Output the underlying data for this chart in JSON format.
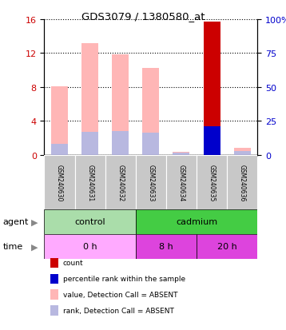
{
  "title": "GDS3079 / 1380580_at",
  "samples": [
    "GSM240630",
    "GSM240631",
    "GSM240632",
    "GSM240633",
    "GSM240634",
    "GSM240635",
    "GSM240636"
  ],
  "value_absent": [
    8.1,
    13.2,
    11.8,
    10.2,
    0.35,
    0.0,
    0.85
  ],
  "rank_absent": [
    1.3,
    2.7,
    2.8,
    2.6,
    0.25,
    0.0,
    0.4
  ],
  "count_present": [
    0,
    0,
    0,
    0,
    0,
    15.7,
    0
  ],
  "percentile_present": [
    0,
    0,
    0,
    0,
    0,
    3.4,
    0
  ],
  "value_absent_634": 0.35,
  "rank_absent_634": 0.25,
  "value_absent_636": 0.85,
  "rank_absent_636": 0.4,
  "ylim_left": [
    0,
    16
  ],
  "ylim_right": [
    0,
    100
  ],
  "yticks_left": [
    0,
    4,
    8,
    12,
    16
  ],
  "yticks_right": [
    0,
    25,
    50,
    75,
    100
  ],
  "yticklabels_right": [
    "0",
    "25",
    "50",
    "75",
    "100%"
  ],
  "color_value_absent": "#FFB6B6",
  "color_rank_absent": "#B8B8E0",
  "color_count": "#CC0000",
  "color_percentile": "#0000CC",
  "bar_width": 0.55,
  "color_control": "#AADDAA",
  "color_cadmium": "#44CC44",
  "color_time_light": "#FFAAFF",
  "color_time_dark": "#DD44DD",
  "color_sample_bg": "#C8C8C8",
  "legend_items": [
    {
      "color": "#CC0000",
      "label": "count"
    },
    {
      "color": "#0000CC",
      "label": "percentile rank within the sample"
    },
    {
      "color": "#FFB6B6",
      "label": "value, Detection Call = ABSENT"
    },
    {
      "color": "#B8B8E0",
      "label": "rank, Detection Call = ABSENT"
    }
  ],
  "left_axis_color": "#CC0000",
  "right_axis_color": "#0000CC"
}
